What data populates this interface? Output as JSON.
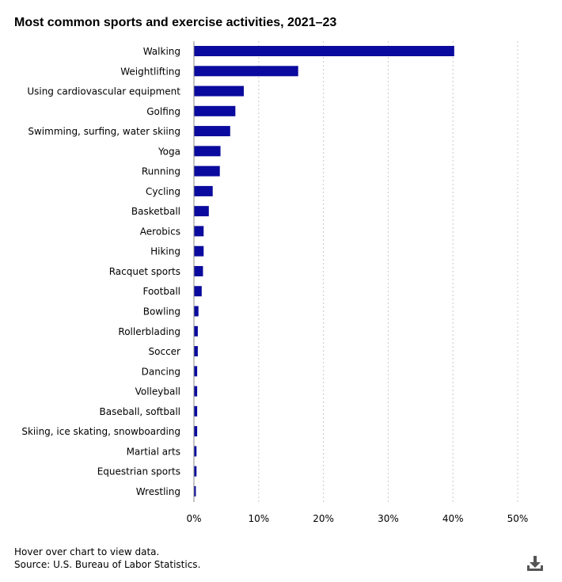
{
  "chart_data": {
    "type": "bar",
    "orientation": "horizontal",
    "title": "Most common sports and exercise activities, 2021–23",
    "categories": [
      "Walking",
      "Weightlifting",
      "Using cardiovascular equipment",
      "Golfing",
      "Swimming, surfing, water skiing",
      "Yoga",
      "Running",
      "Cycling",
      "Basketball",
      "Aerobics",
      "Hiking",
      "Racquet sports",
      "Football",
      "Bowling",
      "Rollerblading",
      "Soccer",
      "Dancing",
      "Volleyball",
      "Baseball, softball",
      "Skiing, ice skating, snowboarding",
      "Martial arts",
      "Equestrian sports",
      "Wrestling"
    ],
    "values": [
      40.2,
      16.1,
      7.7,
      6.4,
      5.6,
      4.1,
      4.0,
      2.9,
      2.3,
      1.5,
      1.5,
      1.4,
      1.2,
      0.7,
      0.6,
      0.6,
      0.5,
      0.5,
      0.5,
      0.5,
      0.4,
      0.4,
      0.3
    ],
    "xlim": [
      0,
      50
    ],
    "xticks": [
      0,
      10,
      20,
      30,
      40,
      50
    ],
    "xtick_labels": [
      "0%",
      "10%",
      "20%",
      "30%",
      "40%",
      "50%"
    ],
    "xlabel": "",
    "ylabel": "",
    "grid": "vertical dotted",
    "legend": "none",
    "bar_color": "#0a0a9e"
  },
  "footer": {
    "hint": "Hover over chart to view data.",
    "source": "Source: U.S. Bureau of Labor Statistics."
  },
  "icons": {
    "download": "download-icon"
  }
}
